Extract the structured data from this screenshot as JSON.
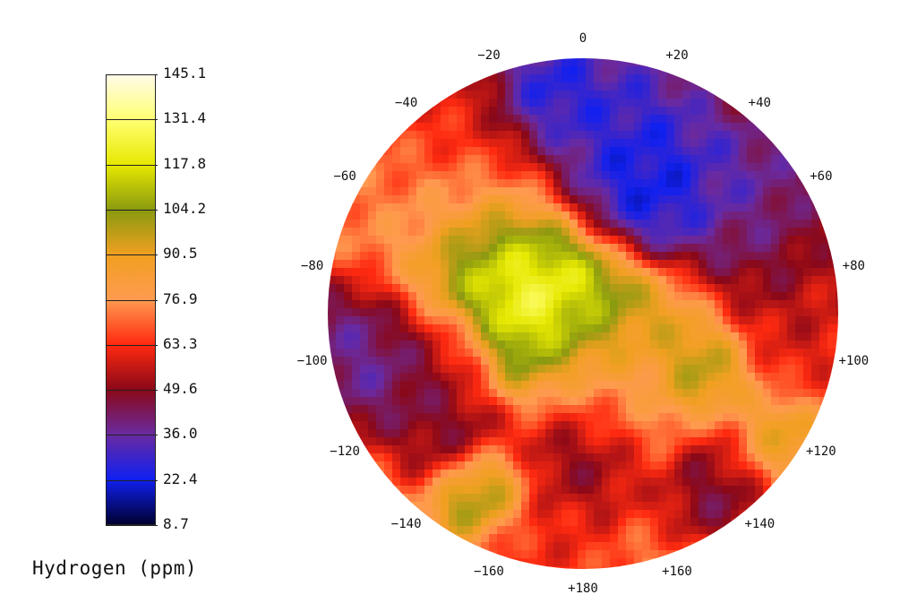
{
  "chart_data": {
    "type": "heatmap",
    "title": "",
    "colorbar": {
      "title": "Hydrogen (ppm)",
      "ticks": [
        "145.1",
        "131.4",
        "117.8",
        "104.2",
        "90.5",
        "76.9",
        "63.3",
        "49.6",
        "36.0",
        "22.4",
        "8.7"
      ],
      "min": 8.7,
      "max": 145.1,
      "colors": [
        "#fffbe8",
        "#ffff70",
        "#e6e800",
        "#8a9a10",
        "#f0a020",
        "#ff9a50",
        "#ff2a10",
        "#8a0818",
        "#6a2aa0",
        "#1020f0",
        "#000030"
      ]
    },
    "angle_labels": [
      "0",
      "+20",
      "+40",
      "+60",
      "+80",
      "+100",
      "+120",
      "+140",
      "+160",
      "+180",
      "−160",
      "−140",
      "−120",
      "−100",
      "−80",
      "−60",
      "−40",
      "−20"
    ],
    "angles": [
      0,
      20,
      40,
      60,
      80,
      100,
      120,
      140,
      160,
      180,
      -160,
      -140,
      -120,
      -100,
      -80,
      -60,
      -40,
      -20
    ],
    "blobs": [
      {
        "a": 10,
        "r": 0.75,
        "v": 22,
        "s": 0.22
      },
      {
        "a": 30,
        "r": 0.55,
        "v": 12,
        "s": 0.16
      },
      {
        "a": 50,
        "r": 0.8,
        "v": 30,
        "s": 0.18
      },
      {
        "a": 70,
        "r": 0.75,
        "v": 40,
        "s": 0.16
      },
      {
        "a": -10,
        "r": 0.88,
        "v": 15,
        "s": 0.12
      },
      {
        "a": -35,
        "r": 0.85,
        "v": 55,
        "s": 0.2
      },
      {
        "a": -55,
        "r": 0.6,
        "v": 85,
        "s": 0.22
      },
      {
        "a": -70,
        "r": 0.35,
        "v": 140,
        "s": 0.18
      },
      {
        "a": -95,
        "r": 0.05,
        "v": 132,
        "s": 0.18
      },
      {
        "a": 130,
        "r": 0.3,
        "v": 95,
        "s": 0.2
      },
      {
        "a": 115,
        "r": 0.5,
        "v": 108,
        "s": 0.1
      },
      {
        "a": -100,
        "r": 0.85,
        "v": 30,
        "s": 0.18
      },
      {
        "a": -105,
        "r": 0.55,
        "v": 45,
        "s": 0.12
      },
      {
        "a": -135,
        "r": 0.7,
        "v": 42,
        "s": 0.12
      },
      {
        "a": -150,
        "r": 0.8,
        "v": 118,
        "s": 0.1
      },
      {
        "a": 180,
        "r": 0.55,
        "v": 40,
        "s": 0.14
      },
      {
        "a": 140,
        "r": 0.85,
        "v": 40,
        "s": 0.14
      },
      {
        "a": 125,
        "r": 0.9,
        "v": 100,
        "s": 0.1
      },
      {
        "a": -170,
        "r": 0.9,
        "v": 60,
        "s": 0.16
      },
      {
        "a": 90,
        "r": 0.85,
        "v": 55,
        "s": 0.18
      },
      {
        "a": -60,
        "r": 0.88,
        "v": 70,
        "s": 0.16
      },
      {
        "a": 160,
        "r": 0.3,
        "v": 60,
        "s": 0.18
      }
    ],
    "background_value": 78
  }
}
